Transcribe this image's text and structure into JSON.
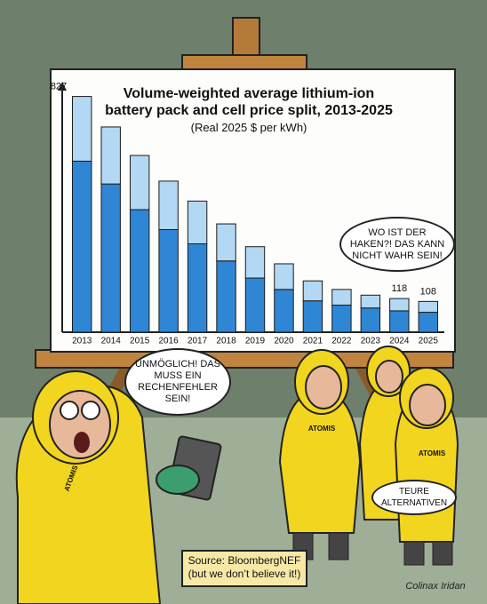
{
  "chart_data": {
    "type": "bar",
    "stacked": true,
    "title": "Volume-weighted average lithium-ion battery pack and cell price split, 2013-2025",
    "subtitle": "(Real 2025 $ per kWh)",
    "categories": [
      "2013",
      "2014",
      "2015",
      "2016",
      "2017",
      "2018",
      "2019",
      "2020",
      "2021",
      "2022",
      "2023",
      "2024",
      "2025"
    ],
    "series": [
      {
        "color": "#2f86d4",
        "values": [
          600,
          520,
          430,
          360,
          310,
          250,
          190,
          150,
          110,
          95,
          85,
          75,
          70
        ]
      },
      {
        "color": "#b3d8f3",
        "values": [
          227,
          200,
          190,
          170,
          150,
          130,
          110,
          90,
          70,
          55,
          45,
          43,
          38
        ]
      }
    ],
    "annotations": [
      {
        "x": "2013",
        "value": 827
      },
      {
        "x": "2024",
        "value": 118
      },
      {
        "x": "2025",
        "value": 108
      }
    ],
    "ylim": [
      0,
      860
    ]
  },
  "speech_bubbles": [
    "WO IST DER HAKEN?! DAS KANN NICHT WAHR SEIN!",
    "UNMÖGLICH! DAS MUSS EIN RECHENFEHLER SEIN!",
    "TEURE ALTERNATIVEN"
  ],
  "suit_label": "ATOMIS",
  "source": "Source: BloombergNEF (but we don’t believe it!)",
  "signature": "Colinax Iridan"
}
